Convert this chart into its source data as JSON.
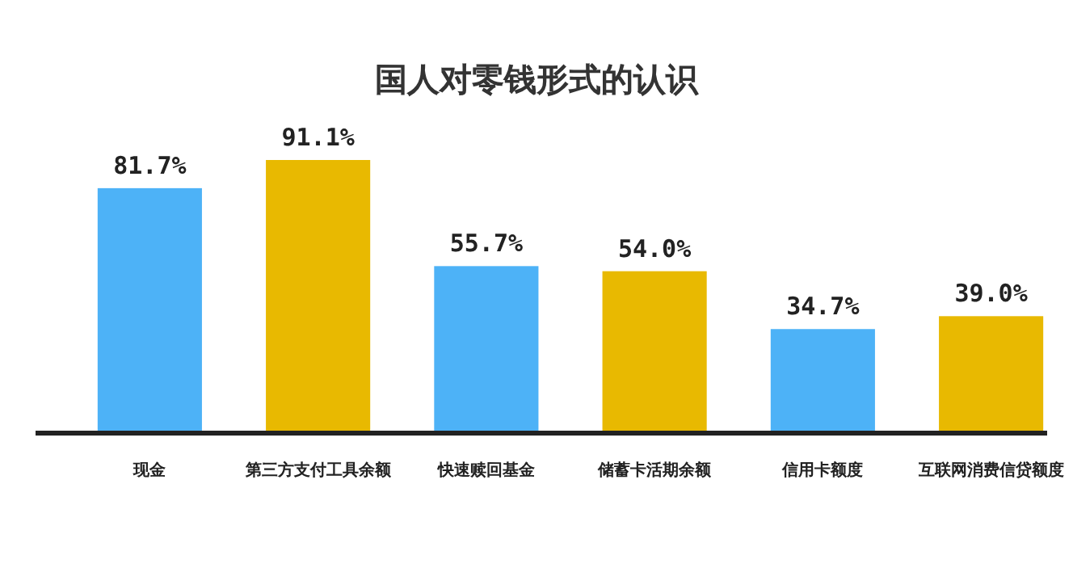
{
  "chart_data": {
    "type": "bar",
    "title": "国人对零钱形式的认识",
    "categories": [
      "现金",
      "第三方支付工具余额",
      "快速赎回基金",
      "储蓄卡活期余额",
      "信用卡额度",
      "互联网消费信贷额度"
    ],
    "values": [
      81.7,
      91.1,
      55.7,
      54.0,
      34.7,
      39.0
    ],
    "value_labels": [
      "81.7%",
      "91.1%",
      "55.7%",
      "54.0%",
      "34.7%",
      "39.0%"
    ],
    "colors": [
      "#4db2f7",
      "#e8b901",
      "#4db2f7",
      "#e8b901",
      "#4db2f7",
      "#e8b901"
    ]
  }
}
